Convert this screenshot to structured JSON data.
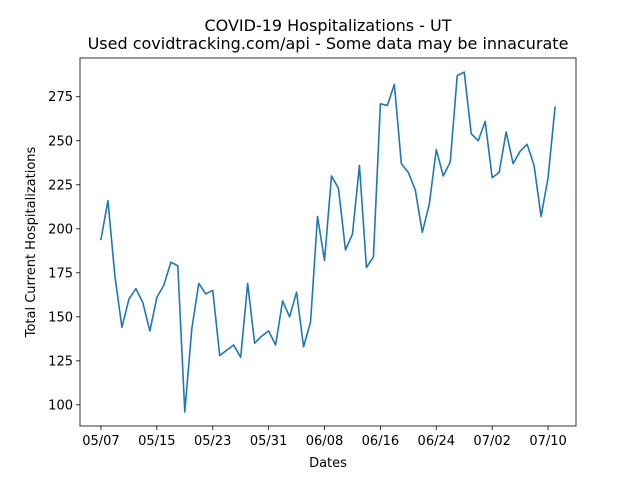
{
  "chart_data": {
    "type": "line",
    "title": "COVID-19 Hospitalizations - UT",
    "subtitle": "Used covidtracking.com/api - Some data may be innacurate",
    "xlabel": "Dates",
    "ylabel": "Total Current Hospitalizations",
    "x_tick_labels": [
      "05/07",
      "05/15",
      "05/23",
      "05/31",
      "06/08",
      "06/16",
      "06/24",
      "07/02",
      "07/10"
    ],
    "y_ticks": [
      100,
      125,
      150,
      175,
      200,
      225,
      250,
      275
    ],
    "xlim": [
      "2020-05-04",
      "2020-07-14"
    ],
    "ylim": [
      88,
      297
    ],
    "grid": false,
    "line_color": "#1f77b4",
    "series": [
      {
        "x": [
          "2020-05-07",
          "2020-05-08",
          "2020-05-09",
          "2020-05-10",
          "2020-05-11",
          "2020-05-12",
          "2020-05-13",
          "2020-05-14",
          "2020-05-15",
          "2020-05-16",
          "2020-05-17",
          "2020-05-18",
          "2020-05-19",
          "2020-05-20",
          "2020-05-21",
          "2020-05-22",
          "2020-05-23",
          "2020-05-24",
          "2020-05-25",
          "2020-05-26",
          "2020-05-27",
          "2020-05-28",
          "2020-05-29",
          "2020-05-30",
          "2020-05-31",
          "2020-06-01",
          "2020-06-02",
          "2020-06-03",
          "2020-06-04",
          "2020-06-05",
          "2020-06-06",
          "2020-06-07",
          "2020-06-08",
          "2020-06-09",
          "2020-06-10",
          "2020-06-11",
          "2020-06-12",
          "2020-06-13",
          "2020-06-14",
          "2020-06-15",
          "2020-06-16",
          "2020-06-17",
          "2020-06-18",
          "2020-06-19",
          "2020-06-20",
          "2020-06-21",
          "2020-06-22",
          "2020-06-23",
          "2020-06-24",
          "2020-06-25",
          "2020-06-26",
          "2020-06-27",
          "2020-06-28",
          "2020-06-29",
          "2020-06-30",
          "2020-07-01",
          "2020-07-02",
          "2020-07-03",
          "2020-07-04",
          "2020-07-05",
          "2020-07-06",
          "2020-07-07",
          "2020-07-08",
          "2020-07-09",
          "2020-07-10",
          "2020-07-11"
        ],
        "values": [
          194,
          216,
          173,
          144,
          160,
          166,
          158,
          142,
          161,
          168,
          181,
          179,
          96,
          143,
          169,
          163,
          165,
          128,
          131,
          134,
          127,
          169,
          135,
          139,
          142,
          134,
          159,
          150,
          164,
          133,
          147,
          207,
          182,
          230,
          223,
          188,
          197,
          236,
          178,
          184,
          271,
          270,
          282,
          237,
          232,
          222,
          198,
          214,
          245,
          230,
          238,
          287,
          289,
          254,
          250,
          261,
          229,
          232,
          255,
          237,
          244,
          248,
          236,
          207,
          229,
          269
        ]
      }
    ]
  }
}
